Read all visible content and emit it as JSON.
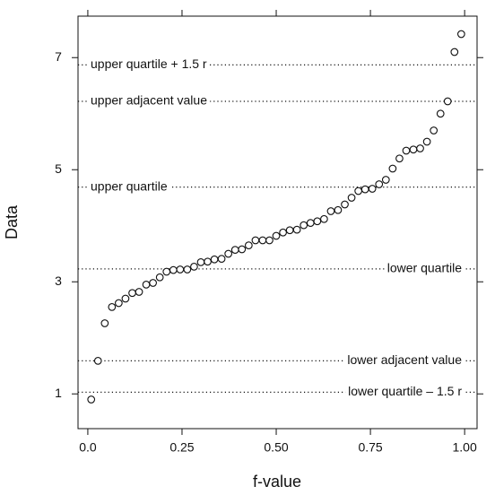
{
  "chart_data": {
    "type": "scatter",
    "x_label": "f-value",
    "y_label": "Data",
    "xlim": [
      -0.026,
      1.033
    ],
    "ylim": [
      0.38,
      7.74
    ],
    "xticks": [
      {
        "value": 0,
        "label": "0.0"
      },
      0.25,
      {
        "value": 0.5,
        "label": "0.50"
      },
      0.75,
      {
        "value": 1,
        "label": "1.00"
      }
    ],
    "yticks": [
      1,
      3,
      5,
      7
    ],
    "grid": false,
    "color": "#111111",
    "x": [
      0.009,
      0.027,
      0.045,
      0.064,
      0.082,
      0.1,
      0.118,
      0.136,
      0.155,
      0.173,
      0.191,
      0.209,
      0.227,
      0.245,
      0.264,
      0.282,
      0.3,
      0.318,
      0.336,
      0.355,
      0.373,
      0.391,
      0.409,
      0.427,
      0.445,
      0.464,
      0.482,
      0.5,
      0.518,
      0.536,
      0.555,
      0.573,
      0.591,
      0.609,
      0.627,
      0.645,
      0.664,
      0.682,
      0.7,
      0.718,
      0.736,
      0.755,
      0.773,
      0.791,
      0.809,
      0.827,
      0.845,
      0.864,
      0.882,
      0.9,
      0.918,
      0.936,
      0.955,
      0.973,
      0.991
    ],
    "values": [
      0.9,
      1.59,
      2.26,
      2.55,
      2.62,
      2.7,
      2.8,
      2.82,
      2.95,
      2.98,
      3.08,
      3.18,
      3.21,
      3.22,
      3.22,
      3.27,
      3.35,
      3.36,
      3.4,
      3.41,
      3.5,
      3.57,
      3.58,
      3.65,
      3.74,
      3.74,
      3.74,
      3.82,
      3.88,
      3.92,
      3.93,
      4.01,
      4.05,
      4.08,
      4.12,
      4.26,
      4.28,
      4.38,
      4.5,
      4.62,
      4.65,
      4.66,
      4.74,
      4.82,
      5.02,
      5.2,
      5.34,
      5.36,
      5.38,
      5.5,
      5.7,
      6.0,
      6.22,
      7.1,
      7.42
    ],
    "reference_lines": [
      {
        "label": "upper quartile + 1.5 r",
        "value": 6.87
      },
      {
        "label": "upper adjacent value",
        "value": 6.22
      },
      {
        "label": "upper quartile",
        "value": 4.69
      },
      {
        "label": "lower quartile",
        "value": 3.23
      },
      {
        "label": "lower adjacent value",
        "value": 1.59
      },
      {
        "label": "lower quartile – 1.5 r",
        "value": 1.03
      }
    ]
  }
}
